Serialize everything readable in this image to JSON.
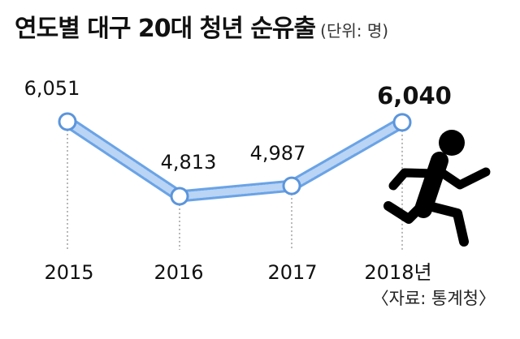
{
  "header": {
    "title": "연도별 대구 20대 청년 순유출",
    "unit": "(단위: 명)"
  },
  "source": "〈자료: 통계청〉",
  "colors": {
    "line": "#6aa3e6",
    "line_fill": "#b9d4f4",
    "marker_fill": "#ffffff",
    "marker_stroke": "#5b95dc",
    "runner": "#000000"
  },
  "icon": "running-person-icon",
  "chart_data": {
    "type": "line",
    "categories": [
      "2015",
      "2016",
      "2017",
      "2018년"
    ],
    "values": [
      6051,
      4813,
      4987,
      6040
    ],
    "value_labels": [
      "6,051",
      "4,813",
      "4,987",
      "6,040"
    ],
    "title": "연도별 대구 20대 청년 순유출",
    "unit": "명",
    "ylim": [
      4500,
      6300
    ],
    "grid": false,
    "highlight_last": true
  }
}
